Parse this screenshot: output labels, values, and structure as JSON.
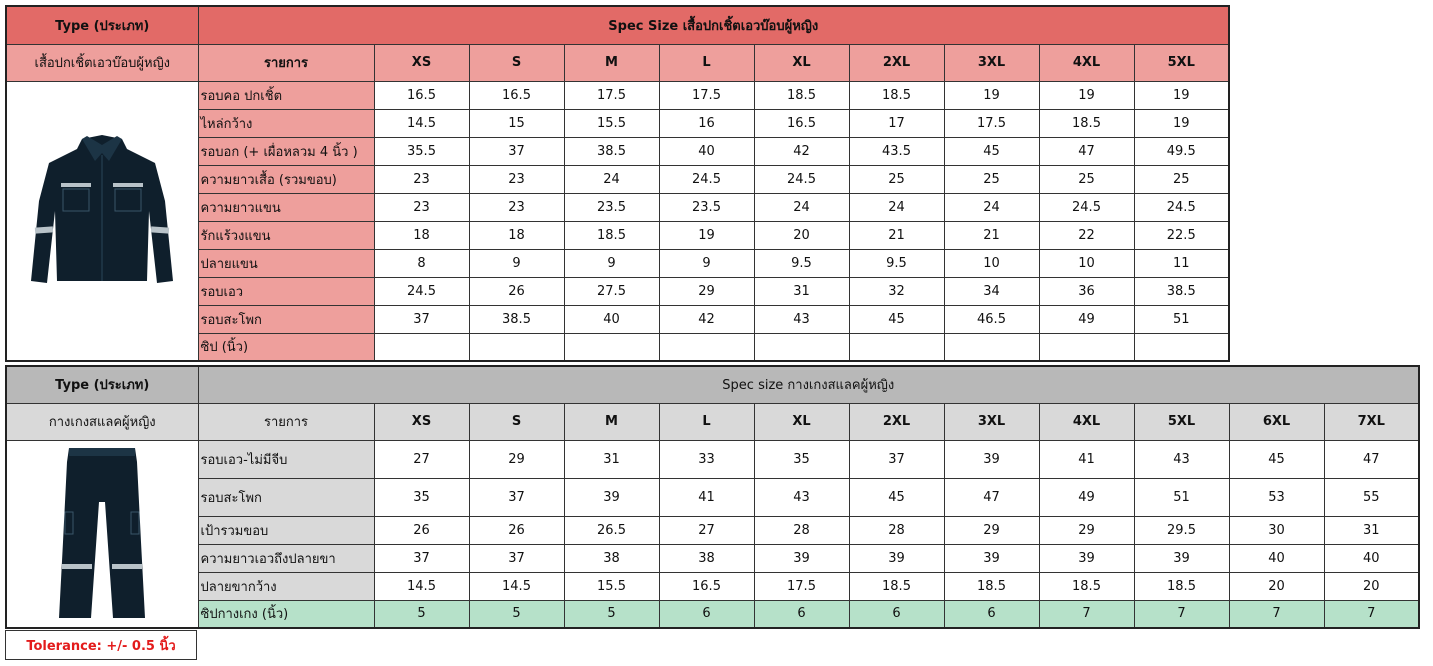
{
  "shirt": {
    "type_label": "Type (ประเภท)",
    "title": "Spec Size เสื้อปกเชิ้ตเอวบ๊อบผู้หญิง",
    "type_name": "เสื้อปกเชิ้ตเอวบ๊อบผู้หญิง",
    "item_header": "รายการ",
    "sizes": [
      "XS",
      "S",
      "M",
      "L",
      "XL",
      "2XL",
      "3XL",
      "4XL",
      "5XL"
    ],
    "rows": [
      {
        "label": "รอบคอ ปกเชิ้ต",
        "values": [
          "16.5",
          "16.5",
          "17.5",
          "17.5",
          "18.5",
          "18.5",
          "19",
          "19",
          "19"
        ]
      },
      {
        "label": "ไหล่กว้าง",
        "values": [
          "14.5",
          "15",
          "15.5",
          "16",
          "16.5",
          "17",
          "17.5",
          "18.5",
          "19"
        ]
      },
      {
        "label": "รอบอก (+ เผื่อหลวม 4 นิ้ว )",
        "values": [
          "35.5",
          "37",
          "38.5",
          "40",
          "42",
          "43.5",
          "45",
          "47",
          "49.5"
        ]
      },
      {
        "label": "ความยาวเสื้อ (รวมขอบ)",
        "values": [
          "23",
          "23",
          "24",
          "24.5",
          "24.5",
          "25",
          "25",
          "25",
          "25"
        ]
      },
      {
        "label": "ความยาวแขน",
        "values": [
          "23",
          "23",
          "23.5",
          "23.5",
          "24",
          "24",
          "24",
          "24.5",
          "24.5"
        ]
      },
      {
        "label": "รักแร้วงแขน",
        "values": [
          "18",
          "18",
          "18.5",
          "19",
          "20",
          "21",
          "21",
          "22",
          "22.5"
        ]
      },
      {
        "label": "ปลายแขน",
        "values": [
          "8",
          "9",
          "9",
          "9",
          "9.5",
          "9.5",
          "10",
          "10",
          "11"
        ]
      },
      {
        "label": "รอบเอว",
        "values": [
          "24.5",
          "26",
          "27.5",
          "29",
          "31",
          "32",
          "34",
          "36",
          "38.5"
        ]
      },
      {
        "label": "รอบสะโพก",
        "values": [
          "37",
          "38.5",
          "40",
          "42",
          "43",
          "45",
          "46.5",
          "49",
          "51"
        ]
      },
      {
        "label": "ซิป (นิ้ว)",
        "values": [
          "",
          "",
          "",
          "",
          "",
          "",
          "",
          "",
          ""
        ]
      }
    ],
    "colors": {
      "header": "#e26a67",
      "sub": "#ee9f9c"
    }
  },
  "pants": {
    "type_label": "Type (ประเภท)",
    "title": "Spec size กางเกงสแลคผู้หญิง",
    "type_name": "กางเกงสแลคผู้หญิง",
    "item_header": "รายการ",
    "sizes": [
      "XS",
      "S",
      "M",
      "L",
      "XL",
      "2XL",
      "3XL",
      "4XL",
      "5XL",
      "6XL",
      "7XL"
    ],
    "rows": [
      {
        "label": "รอบเอว-ไม่มีจีบ",
        "values": [
          "27",
          "29",
          "31",
          "33",
          "35",
          "37",
          "39",
          "41",
          "43",
          "45",
          "47"
        ]
      },
      {
        "label": "รอบสะโพก",
        "values": [
          "35",
          "37",
          "39",
          "41",
          "43",
          "45",
          "47",
          "49",
          "51",
          "53",
          "55"
        ]
      },
      {
        "label": "เป้ารวมขอบ",
        "values": [
          "26",
          "26",
          "26.5",
          "27",
          "28",
          "28",
          "29",
          "29",
          "29.5",
          "30",
          "31"
        ]
      },
      {
        "label": "ความยาวเอวถึงปลายขา",
        "values": [
          "37",
          "37",
          "38",
          "38",
          "39",
          "39",
          "39",
          "39",
          "39",
          "40",
          "40"
        ]
      },
      {
        "label": "ปลายขากว้าง",
        "values": [
          "14.5",
          "14.5",
          "15.5",
          "16.5",
          "17.5",
          "18.5",
          "18.5",
          "18.5",
          "18.5",
          "20",
          "20"
        ]
      },
      {
        "label": "ซิปกางเกง (นิ้ว)",
        "values": [
          "5",
          "5",
          "5",
          "6",
          "6",
          "6",
          "6",
          "7",
          "7",
          "7",
          "7"
        ]
      }
    ],
    "colors": {
      "header": "#b8b8b8",
      "sub": "#d9d9d9",
      "highlight": "#b6e1c9"
    }
  },
  "tolerance": "Tolerance: +/- 0.5 นิ้ว",
  "icons": {
    "shirt": "work-shirt-icon",
    "pants": "work-pants-icon"
  }
}
